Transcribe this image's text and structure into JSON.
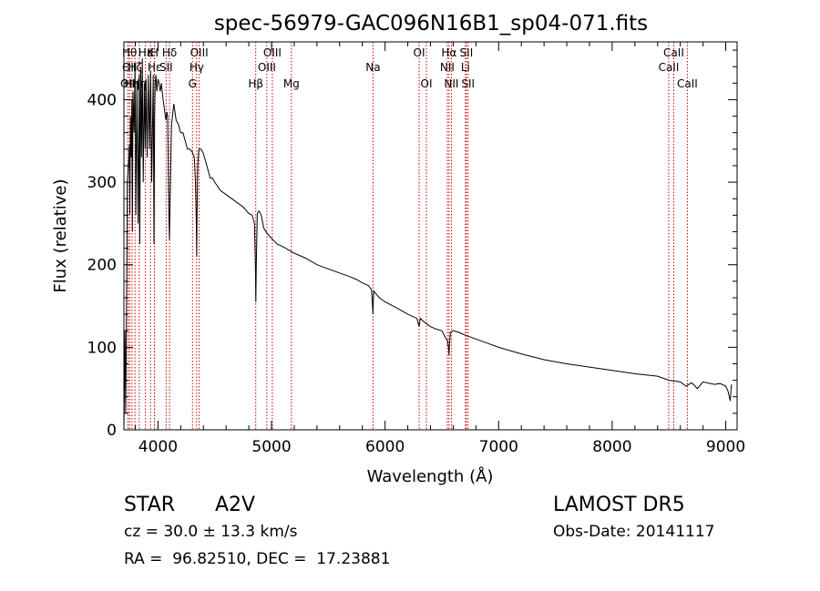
{
  "chart_data": {
    "type": "line",
    "title": "spec-56979-GAC096N16B1_sp04-071.fits",
    "xlabel": "Wavelength (Å)",
    "ylabel": "Flux (relative)",
    "xlim": [
      3700,
      9100
    ],
    "ylim": [
      0,
      470
    ],
    "xticks": [
      4000,
      5000,
      6000,
      7000,
      8000,
      9000
    ],
    "yticks": [
      0,
      100,
      200,
      300,
      400
    ],
    "grid": false,
    "line_color": "#000000",
    "marker_color": "#cc0000",
    "series": [
      {
        "x": [
          3700,
          3705,
          3710,
          3715,
          3720,
          3730,
          3740,
          3748,
          3752,
          3758,
          3765,
          3770,
          3775,
          3780,
          3790,
          3798,
          3805,
          3815,
          3825,
          3835,
          3840,
          3848,
          3855,
          3862,
          3870,
          3880,
          3888,
          3895,
          3905,
          3915,
          3925,
          3935,
          3945,
          3958,
          3965,
          3970,
          3975,
          3982,
          3990,
          4000,
          4010,
          4020,
          4030,
          4045,
          4060,
          4070,
          4078,
          4085,
          4095,
          4101,
          4108,
          4120,
          4140,
          4160,
          4180,
          4200,
          4220,
          4240,
          4260,
          4280,
          4300,
          4320,
          4330,
          4338,
          4341,
          4344,
          4350,
          4360,
          4380,
          4400,
          4430,
          4460,
          4480,
          4500,
          4550,
          4600,
          4650,
          4700,
          4750,
          4800,
          4830,
          4850,
          4858,
          4862,
          4866,
          4875,
          4890,
          4910,
          4930,
          4950,
          4980,
          5000,
          5050,
          5100,
          5150,
          5200,
          5300,
          5400,
          5500,
          5600,
          5700,
          5750,
          5800,
          5850,
          5880,
          5890,
          5893,
          5896,
          5900,
          5950,
          6000,
          6100,
          6200,
          6280,
          6300,
          6310,
          6350,
          6400,
          6450,
          6500,
          6530,
          6550,
          6560,
          6563,
          6566,
          6575,
          6600,
          6650,
          6700,
          6800,
          6900,
          7000,
          7200,
          7400,
          7600,
          7800,
          8000,
          8200,
          8400,
          8500,
          8600,
          8650,
          8700,
          8750,
          8800,
          8900,
          8950,
          9000,
          9020,
          9040,
          9050
        ],
        "y": [
          0,
          60,
          120,
          20,
          90,
          300,
          320,
          345,
          260,
          380,
          330,
          400,
          240,
          410,
          360,
          440,
          260,
          420,
          250,
          430,
          225,
          440,
          330,
          450,
          300,
          420,
          340,
          425,
          330,
          430,
          340,
          435,
          300,
          430,
          225,
          380,
          420,
          430,
          410,
          425,
          420,
          410,
          420,
          400,
          385,
          375,
          385,
          380,
          270,
          230,
          285,
          370,
          395,
          375,
          370,
          360,
          360,
          350,
          340,
          340,
          337,
          330,
          300,
          250,
          210,
          260,
          320,
          340,
          340,
          335,
          320,
          305,
          305,
          300,
          290,
          285,
          280,
          275,
          270,
          262,
          260,
          250,
          200,
          155,
          200,
          262,
          265,
          260,
          245,
          240,
          235,
          232,
          225,
          222,
          218,
          214,
          208,
          200,
          195,
          190,
          185,
          182,
          178,
          175,
          170,
          150,
          140,
          155,
          168,
          160,
          155,
          148,
          140,
          135,
          125,
          135,
          130,
          125,
          122,
          120,
          112,
          108,
          98,
          90,
          100,
          118,
          120,
          118,
          115,
          110,
          105,
          100,
          92,
          85,
          80,
          76,
          72,
          68,
          65,
          60,
          58,
          53,
          57,
          50,
          58,
          55,
          56,
          53,
          47,
          35,
          55
        ]
      }
    ],
    "lines": [
      {
        "x": 3734,
        "label": "OII",
        "row": 2
      },
      {
        "x": 3750,
        "label": "Hθ",
        "row": 0
      },
      {
        "x": 3750,
        "label": "OII",
        "row": 1
      },
      {
        "x": 3771,
        "label": "Hη",
        "row": 2
      },
      {
        "x": 3798,
        "label": "Hζ",
        "row": 1
      },
      {
        "x": 3835,
        "label": "Hη",
        "row": 2
      },
      {
        "x": 3889,
        "label": "Hε",
        "row": 0
      },
      {
        "x": 3934,
        "label": "K",
        "row": 0
      },
      {
        "x": 3969,
        "label": "H",
        "row": 0
      },
      {
        "x": 3970,
        "label": "Hε",
        "row": 1
      },
      {
        "x": 4072,
        "label": "SII",
        "row": 1
      },
      {
        "x": 4102,
        "label": "Hδ",
        "row": 0
      },
      {
        "x": 4304,
        "label": "G",
        "row": 2
      },
      {
        "x": 4341,
        "label": "Hγ",
        "row": 1
      },
      {
        "x": 4363,
        "label": "OIII",
        "row": 0
      },
      {
        "x": 4861,
        "label": "Hβ",
        "row": 2
      },
      {
        "x": 4959,
        "label": "OIII",
        "row": 1
      },
      {
        "x": 5007,
        "label": "OIII",
        "row": 0
      },
      {
        "x": 5175,
        "label": "Mg",
        "row": 2
      },
      {
        "x": 5894,
        "label": "Na",
        "row": 1
      },
      {
        "x": 6300,
        "label": "OI",
        "row": 0
      },
      {
        "x": 6364,
        "label": "OI",
        "row": 2
      },
      {
        "x": 6548,
        "label": "NII",
        "row": 1
      },
      {
        "x": 6563,
        "label": "Hα",
        "row": 0
      },
      {
        "x": 6584,
        "label": "NII",
        "row": 2
      },
      {
        "x": 6708,
        "label": "Li",
        "row": 1
      },
      {
        "x": 6716,
        "label": "SII",
        "row": 0
      },
      {
        "x": 6731,
        "label": "SII",
        "row": 2
      },
      {
        "x": 8498,
        "label": "CaII",
        "row": 1
      },
      {
        "x": 8542,
        "label": "CaII",
        "row": 0
      },
      {
        "x": 8662,
        "label": "CaII",
        "row": 2
      }
    ]
  },
  "info": {
    "class_label": "STAR",
    "subclass": "A2V",
    "survey": "LAMOST DR5",
    "cz": "cz = 30.0 ± 13.3 km/s",
    "obs_date": "Obs-Date: 20141117",
    "coords": "RA =  96.82510, DEC =  17.23881"
  }
}
